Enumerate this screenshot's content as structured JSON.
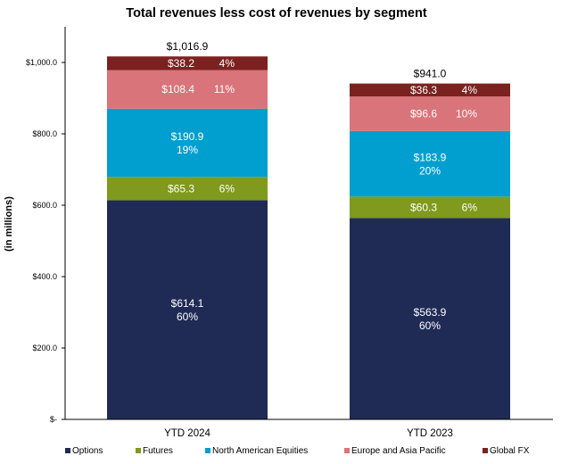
{
  "chart_data": {
    "type": "bar",
    "stacked": true,
    "title": "Total revenues less cost of revenues by segment",
    "ylabel": "(in millions)",
    "xlabel": "",
    "ylim": [
      0,
      1100
    ],
    "yticks": [
      0,
      200,
      400,
      600,
      800,
      1000
    ],
    "ytick_labels": [
      "$-",
      "$200.0",
      "$400.0",
      "$600.0",
      "$800.0",
      "$1,000.0"
    ],
    "categories": [
      "YTD 2024",
      "YTD 2023"
    ],
    "totals": [
      1016.9,
      941.0
    ],
    "total_labels": [
      "$1,016.9",
      "$941.0"
    ],
    "legend_position": "bottom",
    "series": [
      {
        "name": "Options",
        "color": "#1f2a55",
        "values": [
          614.1,
          563.9
        ],
        "labels": [
          [
            "$614.1",
            "60%"
          ],
          [
            "$563.9",
            "60%"
          ]
        ],
        "label_layout": "stacked"
      },
      {
        "name": "Futures",
        "color": "#7f9a1c",
        "values": [
          65.3,
          60.3
        ],
        "labels": [
          [
            "$65.3",
            "6%"
          ],
          [
            "$60.3",
            "6%"
          ]
        ],
        "label_layout": "inline"
      },
      {
        "name": "North American Equities",
        "color": "#009fcf",
        "values": [
          190.9,
          183.9
        ],
        "labels": [
          [
            "$190.9",
            "19%"
          ],
          [
            "$183.9",
            "20%"
          ]
        ],
        "label_layout": "stacked"
      },
      {
        "name": "Europe and Asia Pacific",
        "color": "#d9747a",
        "values": [
          108.4,
          96.6
        ],
        "labels": [
          [
            "$108.4",
            "11%"
          ],
          [
            "$96.6",
            "10%"
          ]
        ],
        "label_layout": "inline"
      },
      {
        "name": "Global FX",
        "color": "#7b2220",
        "values": [
          38.2,
          36.3
        ],
        "labels": [
          [
            "$38.2",
            "4%"
          ],
          [
            "$36.3",
            "4%"
          ]
        ],
        "label_layout": "inline"
      }
    ]
  }
}
